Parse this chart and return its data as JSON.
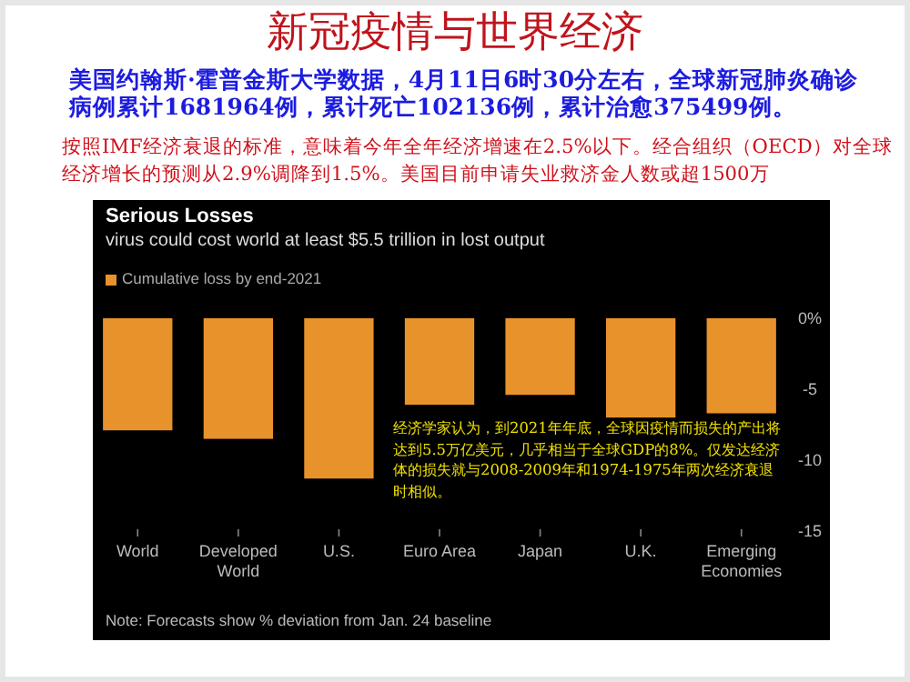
{
  "chart_data": {
    "type": "bar",
    "title": "新冠疫情与世界经济",
    "annotations": [
      "美国约翰斯·霍普金斯大学数据，4月11日6时30分左右，全球新冠肺炎确诊病例累计1681964例，累计死亡102136例，累计治愈375499例。",
      "按照IMF经济衰退的标准，意味着今年全年经济增速在2.5%以下。经合组织（OECD）对全球经济增长的预测从2.9%调降到1.5%。美国目前申请失业救济金人数或超1500万",
      "Serious Losses",
      "virus could cost world at least $5.5 trillion in lost output",
      "经济学家认为，到2021年年底，全球因疫情而损失的产出将达到5.5万亿美元，几乎相当于全球GDP的8%。仅发达经济体的损失就与2008-2009年和1974-1975年两次经济衰退时相似。",
      "Note: Forecasts show % deviation from Jan. 24 baseline"
    ],
    "categories": [
      "World",
      "Developed World",
      "U.S.",
      "Euro Area",
      "Japan",
      "U.K.",
      "Emerging Economies"
    ],
    "series": [
      {
        "name": "Cumulative loss by end-2021",
        "color": "#e8922c",
        "values": [
          -7.9,
          -8.5,
          -11.3,
          -6.1,
          -5.4,
          -7.0,
          -6.7
        ]
      }
    ],
    "ylim": [
      -15,
      0
    ],
    "yticks": [
      {
        "value": 0,
        "label": "0%"
      },
      -5,
      -10,
      -15
    ],
    "legend": "top left"
  }
}
